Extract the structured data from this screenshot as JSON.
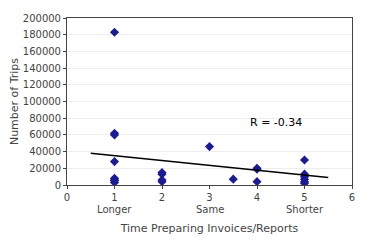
{
  "chart_data": {
    "type": "scatter",
    "xlabel": "Time Preparing Invoices/Reports",
    "ylabel": "Number of Trips",
    "series": [
      {
        "type": "scatter",
        "color": "#1c1c8f",
        "marker": "diamond",
        "x": [
          1,
          1,
          1,
          1,
          1,
          1,
          1,
          1,
          2,
          2,
          2,
          2,
          3,
          3.5,
          4,
          4,
          4,
          5,
          5,
          5,
          5,
          5,
          5
        ],
        "values": [
          183000,
          62000,
          60000,
          28000,
          8000,
          6000,
          5000,
          3000,
          15000,
          13000,
          6000,
          4000,
          46000,
          7000,
          20000,
          19000,
          4000,
          30000,
          13000,
          10000,
          7000,
          4000,
          2000
        ]
      },
      {
        "type": "line",
        "color": "#000000",
        "line_style": "solid",
        "x": [
          0.5,
          5.5
        ],
        "values": [
          38000,
          9000
        ]
      }
    ],
    "annotations": [
      {
        "text": "R = -0.34",
        "x": 3.8,
        "y": 65000
      },
      {
        "text": "Longer",
        "x": 1
      },
      {
        "text": "Same",
        "x": 3
      },
      {
        "text": "Shorter",
        "x": 5
      }
    ],
    "xlim": [
      0,
      6
    ],
    "xticks": [
      0,
      1,
      2,
      3,
      4,
      5,
      6
    ],
    "ylim": [
      0,
      200000
    ],
    "yticks": [
      0,
      20000,
      40000,
      60000,
      80000,
      100000,
      120000,
      140000,
      160000,
      180000,
      200000
    ],
    "grid": true
  }
}
